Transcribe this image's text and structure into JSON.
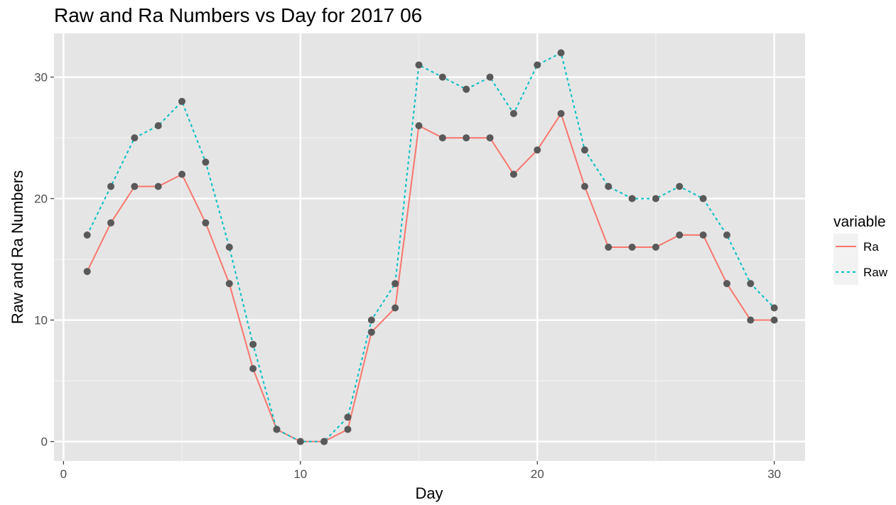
{
  "chart_data": {
    "type": "line",
    "title": "Raw and Ra Numbers vs Day for 2017 06",
    "xlabel": "Day",
    "ylabel": "Raw and Ra Numbers",
    "xlim": [
      -0.4,
      31.3
    ],
    "ylim": [
      -1.6,
      33.6
    ],
    "x_ticks": [
      0,
      10,
      20,
      30
    ],
    "y_ticks": [
      0,
      10,
      20,
      30
    ],
    "x_minor": [
      5,
      15,
      25
    ],
    "y_minor": [
      5,
      15,
      25
    ],
    "grid": true,
    "legend": {
      "title": "variable",
      "placement": "right"
    },
    "x": [
      1,
      2,
      3,
      4,
      5,
      6,
      7,
      8,
      9,
      10,
      11,
      12,
      13,
      14,
      15,
      16,
      17,
      18,
      19,
      20,
      21,
      22,
      23,
      24,
      25,
      26,
      27,
      28,
      29,
      30
    ],
    "series": [
      {
        "name": "Ra",
        "color": "#f8766d",
        "dash": "solid",
        "values": [
          14,
          18,
          21,
          21,
          22,
          18,
          13,
          6,
          1,
          0,
          0,
          1,
          9,
          11,
          26,
          25,
          25,
          25,
          22,
          24,
          27,
          21,
          16,
          16,
          16,
          17,
          17,
          13,
          10,
          10
        ]
      },
      {
        "name": "Raw",
        "color": "#00bfc4",
        "dash": "dotted",
        "values": [
          17,
          21,
          25,
          26,
          28,
          23,
          16,
          8,
          1,
          0,
          0,
          2,
          10,
          13,
          31,
          30,
          29,
          30,
          27,
          31,
          32,
          24,
          21,
          20,
          20,
          21,
          20,
          17,
          13,
          11
        ]
      }
    ],
    "point_color": "#595959",
    "panel_background": "#e5e5e5",
    "legend_key_background": "#f2f2f2"
  }
}
